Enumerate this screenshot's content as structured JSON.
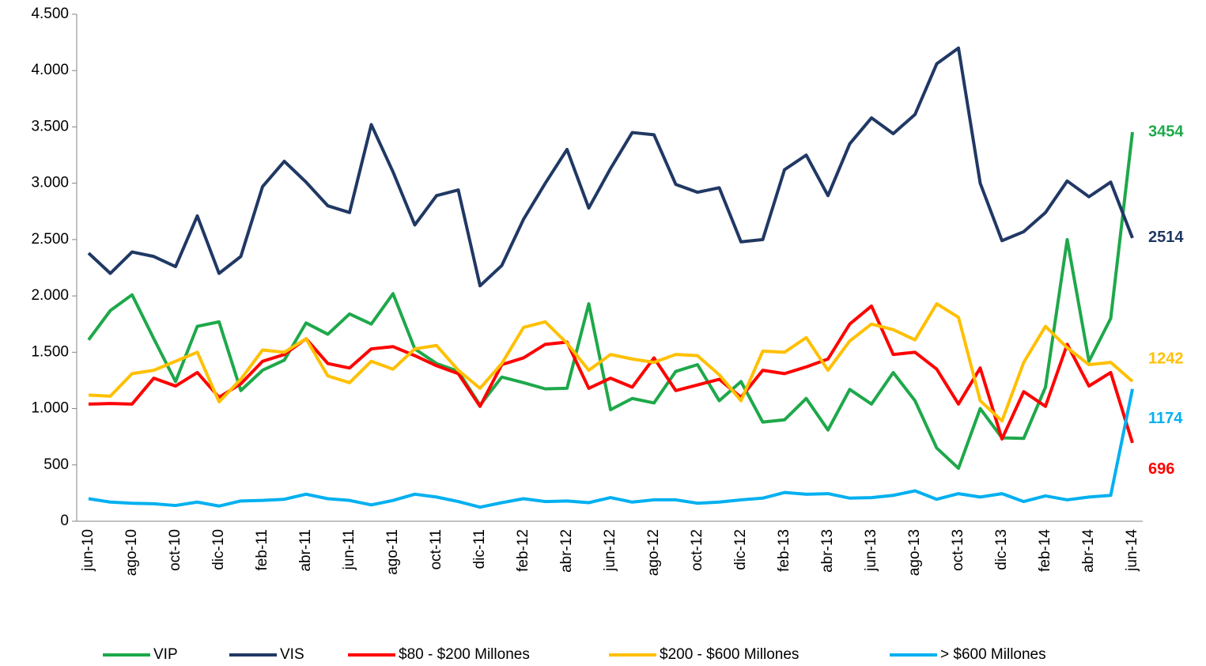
{
  "chart_data": {
    "type": "line",
    "categories": [
      "jun-10",
      null,
      "ago-10",
      null,
      "oct-10",
      null,
      "dic-10",
      null,
      "feb-11",
      null,
      "abr-11",
      null,
      "jun-11",
      null,
      "ago-11",
      null,
      "oct-11",
      null,
      "dic-11",
      null,
      "feb-12",
      null,
      "abr-12",
      null,
      "jun-12",
      null,
      "ago-12",
      null,
      "oct-12",
      null,
      "dic-12",
      null,
      "feb-13",
      null,
      "abr-13",
      null,
      "jun-13",
      null,
      "ago-13",
      null,
      "oct-13",
      null,
      "dic-13",
      null,
      "feb-14",
      null,
      "abr-14",
      null,
      "jun-14"
    ],
    "series": [
      {
        "name": "VIP",
        "color": "#1ea84a",
        "values": [
          1610,
          1870,
          2010,
          1620,
          1240,
          1730,
          1770,
          1160,
          1340,
          1430,
          1760,
          1660,
          1840,
          1750,
          2020,
          1530,
          1400,
          1330,
          1030,
          1280,
          1230,
          1175,
          1180,
          1930,
          990,
          1090,
          1050,
          1330,
          1390,
          1070,
          1240,
          880,
          900,
          1090,
          810,
          1170,
          1040,
          1320,
          1070,
          650,
          470,
          1000,
          740,
          735,
          1190,
          2500,
          1420,
          1800,
          3454
        ]
      },
      {
        "name": "VIS",
        "color": "#203864",
        "values": [
          2380,
          2200,
          2390,
          2350,
          2260,
          2710,
          2200,
          2350,
          2970,
          3195,
          3010,
          2800,
          2740,
          3520,
          3100,
          2630,
          2890,
          2940,
          2090,
          2270,
          2680,
          3000,
          3300,
          2780,
          3130,
          3450,
          3430,
          2990,
          2920,
          2960,
          2480,
          2500,
          3120,
          3250,
          2890,
          3350,
          3580,
          3440,
          3610,
          4060,
          4200,
          3000,
          2490,
          2570,
          2740,
          3020,
          2880,
          3010,
          2514
        ]
      },
      {
        "name": "$80 - $200 Millones",
        "color": "#ff0000",
        "values": [
          1040,
          1045,
          1040,
          1270,
          1200,
          1320,
          1100,
          1220,
          1420,
          1480,
          1620,
          1400,
          1360,
          1530,
          1550,
          1470,
          1380,
          1310,
          1020,
          1390,
          1450,
          1570,
          1590,
          1180,
          1270,
          1190,
          1450,
          1160,
          1210,
          1260,
          1100,
          1340,
          1310,
          1370,
          1440,
          1750,
          1910,
          1480,
          1500,
          1350,
          1040,
          1360,
          730,
          1150,
          1020,
          1570,
          1200,
          1320,
          696
        ]
      },
      {
        "name": "$200 - $600 Millones",
        "color": "#ffc000",
        "values": [
          1120,
          1110,
          1310,
          1340,
          1420,
          1500,
          1060,
          1260,
          1520,
          1500,
          1620,
          1290,
          1230,
          1420,
          1350,
          1530,
          1560,
          1340,
          1180,
          1400,
          1720,
          1770,
          1580,
          1340,
          1480,
          1440,
          1410,
          1480,
          1470,
          1300,
          1070,
          1510,
          1500,
          1630,
          1340,
          1600,
          1750,
          1700,
          1610,
          1930,
          1810,
          1070,
          890,
          1410,
          1730,
          1540,
          1390,
          1410,
          1242
        ]
      },
      {
        "name": "> $600 Millones",
        "color": "#00b0f0",
        "values": [
          200,
          170,
          160,
          155,
          140,
          170,
          135,
          180,
          185,
          195,
          240,
          200,
          185,
          145,
          185,
          240,
          215,
          175,
          125,
          165,
          200,
          175,
          180,
          165,
          210,
          170,
          190,
          190,
          160,
          170,
          190,
          205,
          255,
          240,
          245,
          205,
          210,
          230,
          270,
          195,
          245,
          215,
          245,
          175,
          225,
          190,
          215,
          230,
          1174
        ]
      }
    ],
    "ylim": [
      0,
      4500
    ],
    "yticks": [
      0,
      500,
      {
        "value": 1000,
        "label": "1.000"
      },
      {
        "value": 1500,
        "label": "1.500"
      },
      {
        "value": 2000,
        "label": "2.000"
      },
      {
        "value": 2500,
        "label": "2.500"
      },
      {
        "value": 3000,
        "label": "3.000"
      },
      {
        "value": 3500,
        "label": "3.500"
      },
      {
        "value": 4000,
        "label": "4.000"
      },
      {
        "value": 4500,
        "label": "4.500"
      }
    ],
    "legend": "bottom"
  }
}
